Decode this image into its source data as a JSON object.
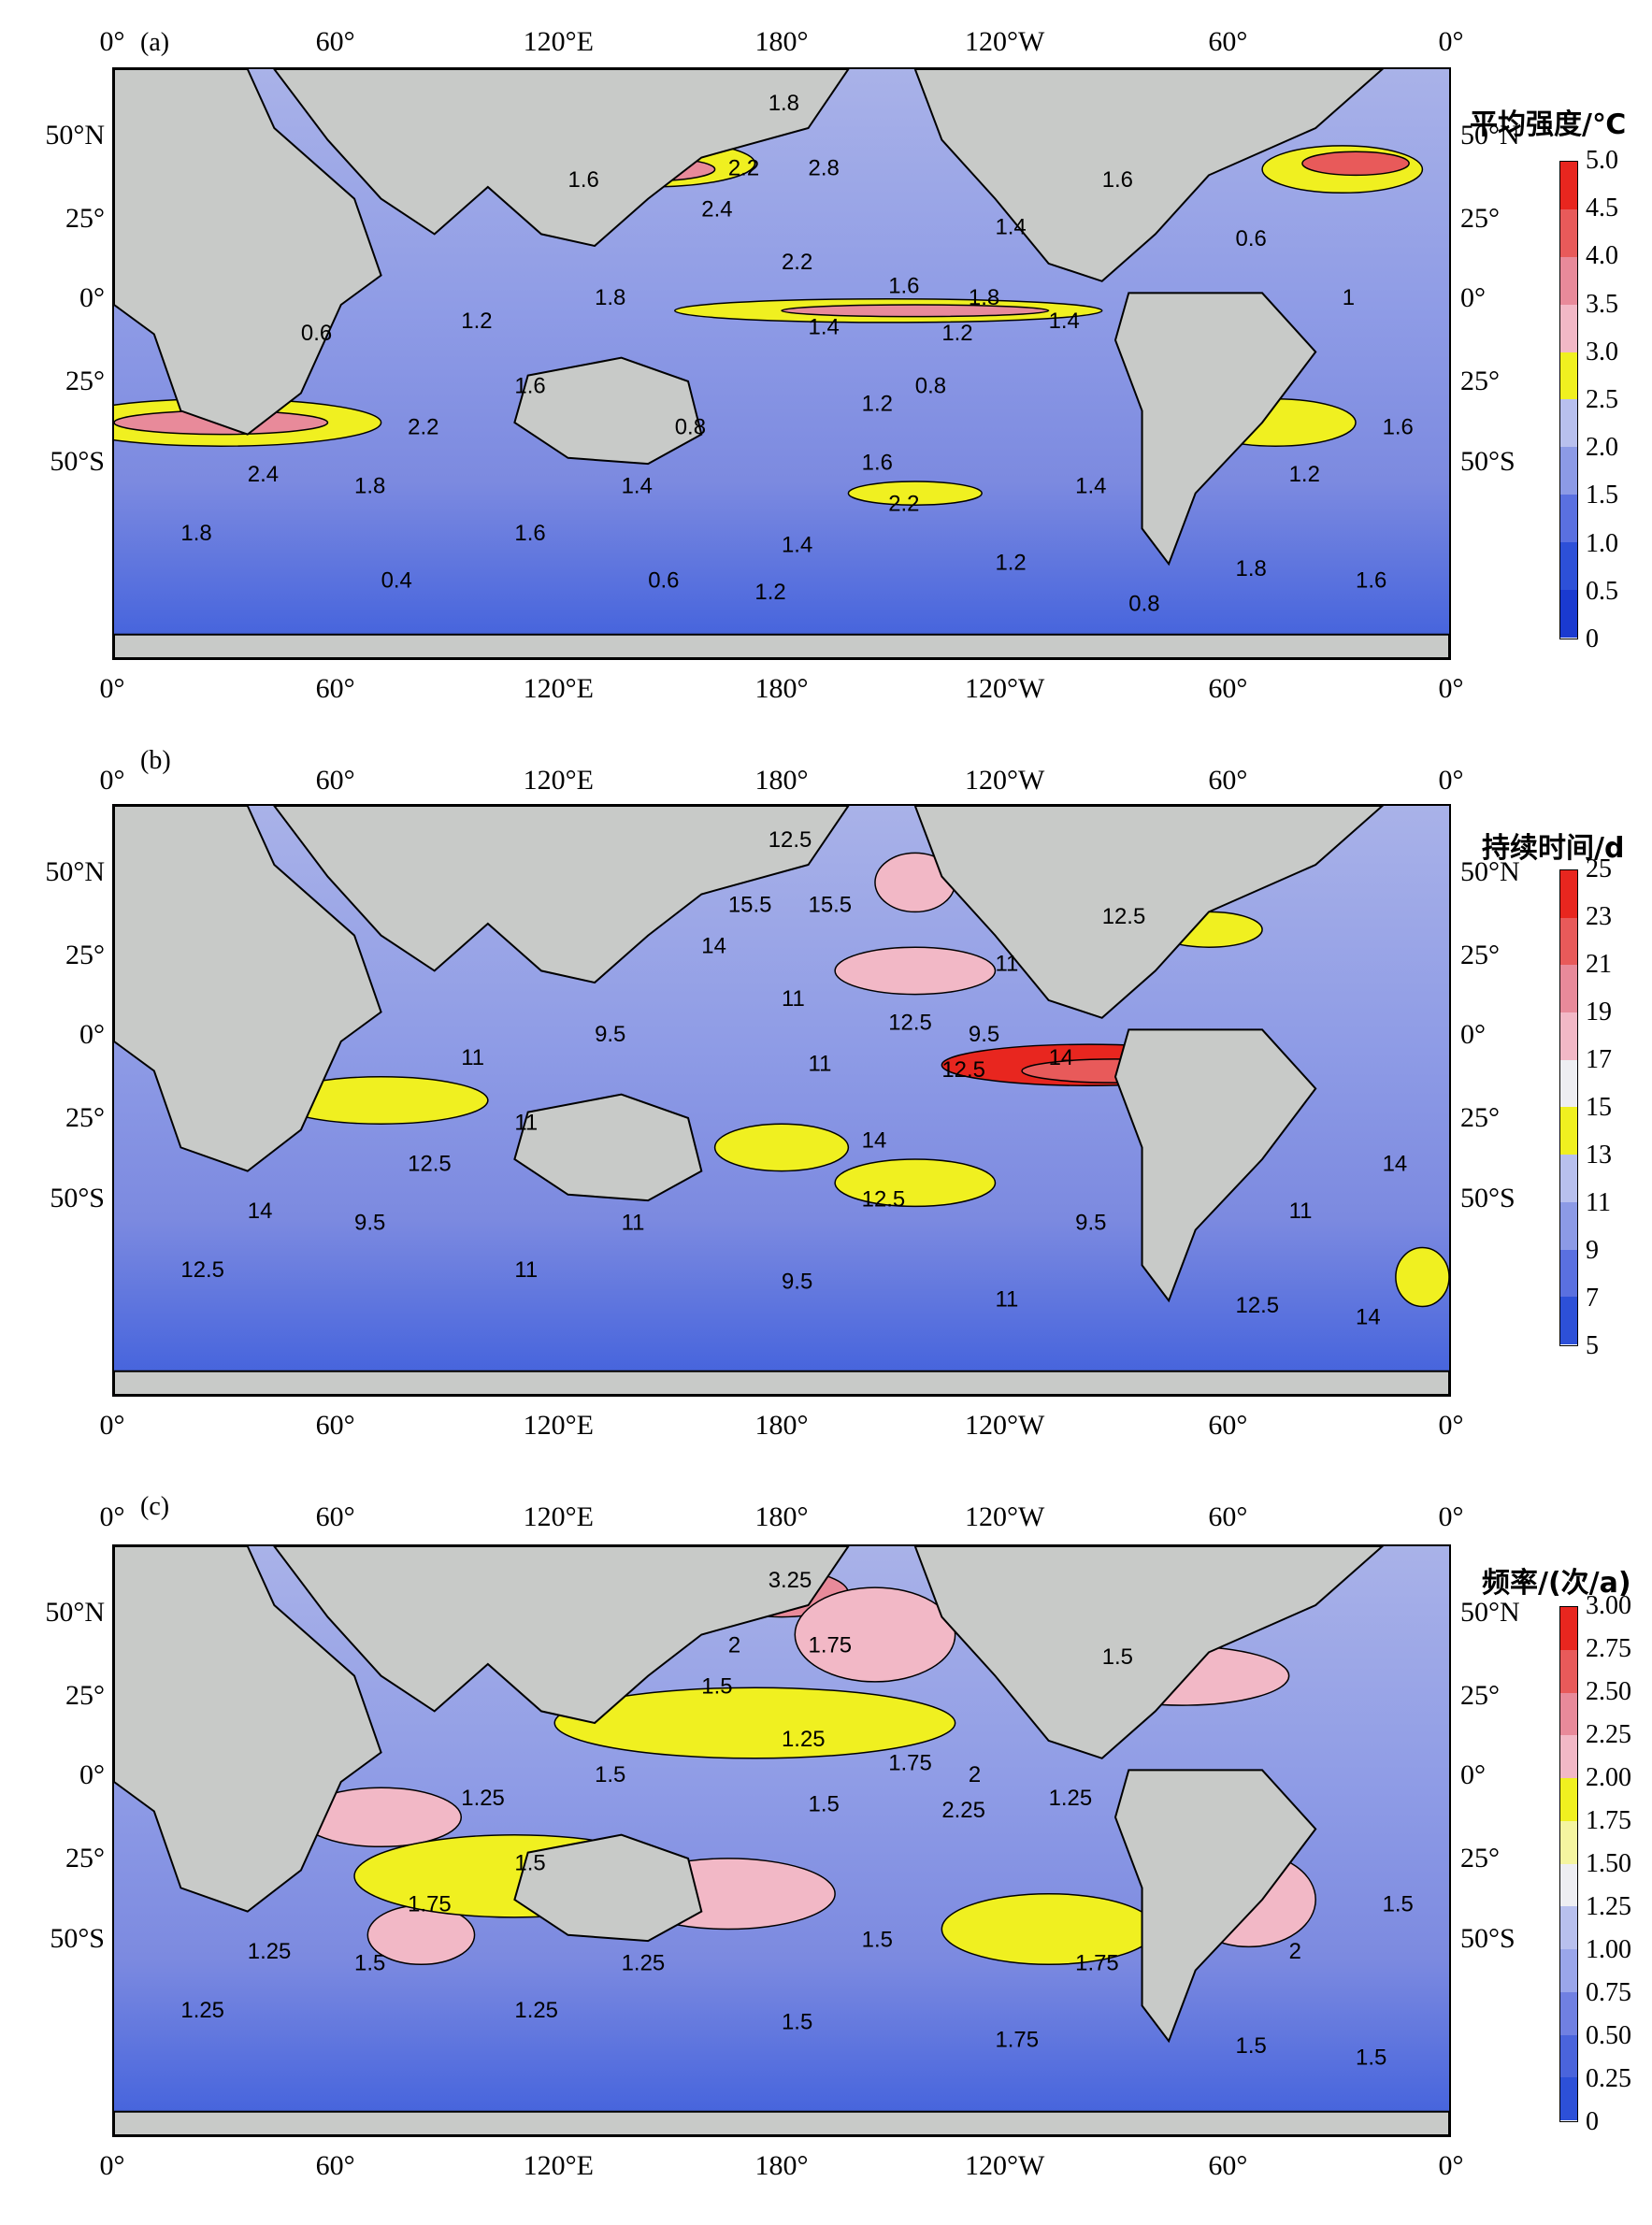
{
  "panels": [
    {
      "label": "(a)",
      "colorbar_title": "平均强度/℃",
      "colorbar_ticks": [
        "5.0",
        "4.5",
        "4.0",
        "3.5",
        "3.0",
        "2.5",
        "2.0",
        "1.5",
        "1.0",
        "0.5",
        "0"
      ],
      "colorbar_colors": [
        "#e8261f",
        "#e85a5a",
        "#e88a9a",
        "#f2b8c6",
        "#f0f020",
        "#b8c0ee",
        "#8c9ae6",
        "#5a70e0",
        "#2d50d8",
        "#1a3ad0"
      ],
      "contour_labels": [
        "1.8",
        "2.2",
        "2.8",
        "2.4",
        "2.2",
        "1.6",
        "1.8",
        "1.4",
        "1.2",
        "1.4",
        "1.6",
        "2.2",
        "2.4",
        "1.8",
        "1.4",
        "1.6",
        "1.4",
        "1.2",
        "1.6",
        "1.8",
        "1.6",
        "1.4",
        "1.2",
        "1.8",
        "1.6",
        "1.2",
        "1.8",
        "1.6",
        "1.4",
        "1.2",
        "0.8",
        "0.6",
        "0.6",
        "1",
        "0.8",
        "1.2",
        "0.6",
        "0.4",
        "0.8",
        "2.2",
        "1.6"
      ]
    },
    {
      "label": "(b)",
      "colorbar_title": "持续时间/d",
      "colorbar_ticks": [
        "25",
        "23",
        "21",
        "19",
        "17",
        "15",
        "13",
        "11",
        "9",
        "7",
        "5"
      ],
      "colorbar_colors": [
        "#e8261f",
        "#e85a5a",
        "#e88a9a",
        "#f2b8c6",
        "#eeeef2",
        "#f0f020",
        "#b8c0ee",
        "#8c9ae6",
        "#5a70e0",
        "#2d50d8"
      ],
      "contour_labels": [
        "12.5",
        "15.5",
        "15.5",
        "14",
        "11",
        "12.5",
        "9.5",
        "11",
        "12.5",
        "14",
        "11",
        "12.5",
        "14",
        "9.5",
        "11",
        "12.5",
        "9.5",
        "11",
        "14",
        "12.5",
        "11",
        "9.5",
        "11",
        "12.5",
        "14",
        "11",
        "9.5",
        "12.5",
        "11",
        "14"
      ]
    },
    {
      "label": "(c)",
      "colorbar_title": "频率/(次/a)",
      "colorbar_ticks": [
        "3.00",
        "2.75",
        "2.50",
        "2.25",
        "2.00",
        "1.75",
        "1.50",
        "1.25",
        "1.00",
        "0.75",
        "0.50",
        "0.25",
        "0"
      ],
      "colorbar_colors": [
        "#e8261f",
        "#e85a5a",
        "#e88a9a",
        "#f2b8c6",
        "#f0f020",
        "#f5f5a0",
        "#eeeef2",
        "#b8c0ee",
        "#9aa6ea",
        "#7080e2",
        "#4a64dc",
        "#2d50d8"
      ],
      "contour_labels": [
        "3.25",
        "2",
        "1.75",
        "1.5",
        "1.25",
        "1.75",
        "2",
        "1.5",
        "2.25",
        "1.25",
        "1.5",
        "1.75",
        "1.25",
        "1.5",
        "1.25",
        "1.5",
        "1.75",
        "2",
        "1.5",
        "1.25",
        "1.25",
        "1.5",
        "1.75",
        "1.5",
        "1.5",
        "1.25",
        "1.5",
        "1.5"
      ]
    }
  ],
  "axes": {
    "top_ticks": [
      "0°",
      "60°",
      "120°E",
      "180°",
      "120°W",
      "60°",
      "0°"
    ],
    "bottom_ticks": [
      "0°",
      "60°",
      "120°E",
      "180°",
      "120°W",
      "60°",
      "0°"
    ],
    "left_ticks": [
      "50°N",
      "25°",
      "0°",
      "25°",
      "50°S"
    ],
    "right_ticks": [
      "50°N",
      "25°",
      "0°",
      "25°",
      "50°S"
    ]
  },
  "land_color": "#c8cac8"
}
